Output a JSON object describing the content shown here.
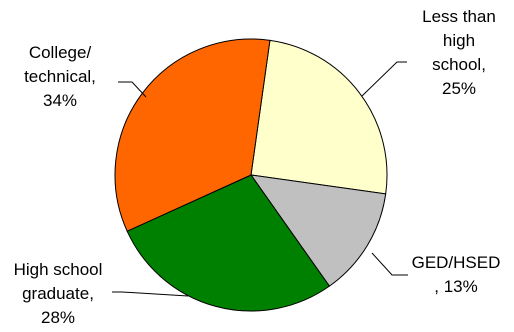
{
  "chart_data": {
    "type": "pie",
    "categories": [
      "Less than high school",
      "GED/HSED",
      "High school graduate",
      "College/ technical"
    ],
    "values": [
      25,
      13,
      28,
      34
    ],
    "unit": "%",
    "colors": [
      "#FFFFCC",
      "#C0C0C0",
      "#008000",
      "#FF6600"
    ],
    "labels": [
      {
        "lines": [
          "Less than",
          "high",
          "school,",
          "25%"
        ]
      },
      {
        "lines": [
          "GED/HSED",
          ", 13%"
        ]
      },
      {
        "lines": [
          "High school",
          "graduate,",
          "28%"
        ]
      },
      {
        "lines": [
          "College/",
          "technical,",
          "34%"
        ]
      }
    ],
    "start_angle_deg": 8,
    "direction": "clockwise",
    "legend": "none"
  }
}
